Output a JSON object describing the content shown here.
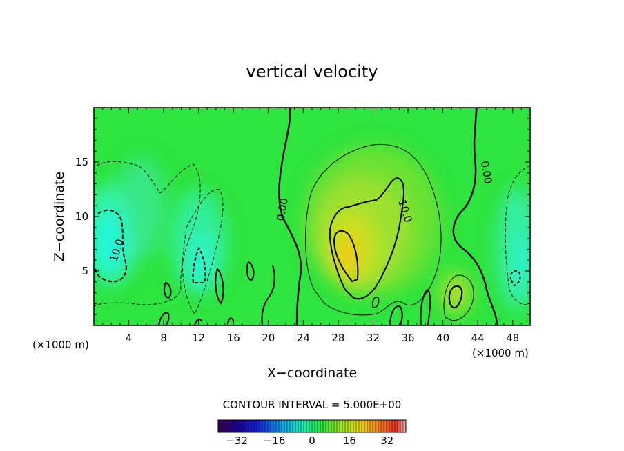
{
  "chart_data": {
    "type": "heatmap",
    "title": "vertical velocity",
    "xlabel": "X−coordinate",
    "ylabel": "Z−coordinate",
    "x_unit_left": "(×1000 m)",
    "x_unit_right": "(×1000 m)",
    "xlim": [
      0,
      50
    ],
    "ylim": [
      0,
      20
    ],
    "x_ticks": [
      4,
      8,
      12,
      16,
      20,
      24,
      28,
      32,
      36,
      40,
      44,
      48
    ],
    "y_ticks": [
      5,
      10,
      15
    ],
    "contour_interval_text": "CONTOUR INTERVAL = 5.000E+00",
    "contour_labels": [
      {
        "text": "10.0",
        "x": 3.0,
        "y": 6.8,
        "angle": -72
      },
      {
        "text": "0.00",
        "x": 22.0,
        "y": 10.6,
        "angle": -80
      },
      {
        "text": "10.0",
        "x": 35.3,
        "y": 10.4,
        "angle": 72
      },
      {
        "text": "0.00",
        "x": 44.6,
        "y": 14.0,
        "angle": 80
      }
    ],
    "colorbar": {
      "range": [
        -40,
        40
      ],
      "ticks": [
        -32,
        -16,
        0,
        16,
        32
      ],
      "tick_labels": [
        "−32",
        "−16",
        "0",
        "16",
        "32"
      ]
    },
    "field_extrema": [
      {
        "type": "max",
        "x": 29.5,
        "y": 6.5,
        "value": 16
      },
      {
        "type": "max",
        "x": 41.6,
        "y": 2.8,
        "value": 11
      },
      {
        "type": "min",
        "x": 1.5,
        "y": 7.5,
        "value": -14
      },
      {
        "type": "min",
        "x": 12.0,
        "y": 6.0,
        "value": -10
      },
      {
        "type": "min",
        "x": 48.5,
        "y": 5.0,
        "value": -6
      }
    ],
    "grid": false,
    "legend": "none"
  }
}
